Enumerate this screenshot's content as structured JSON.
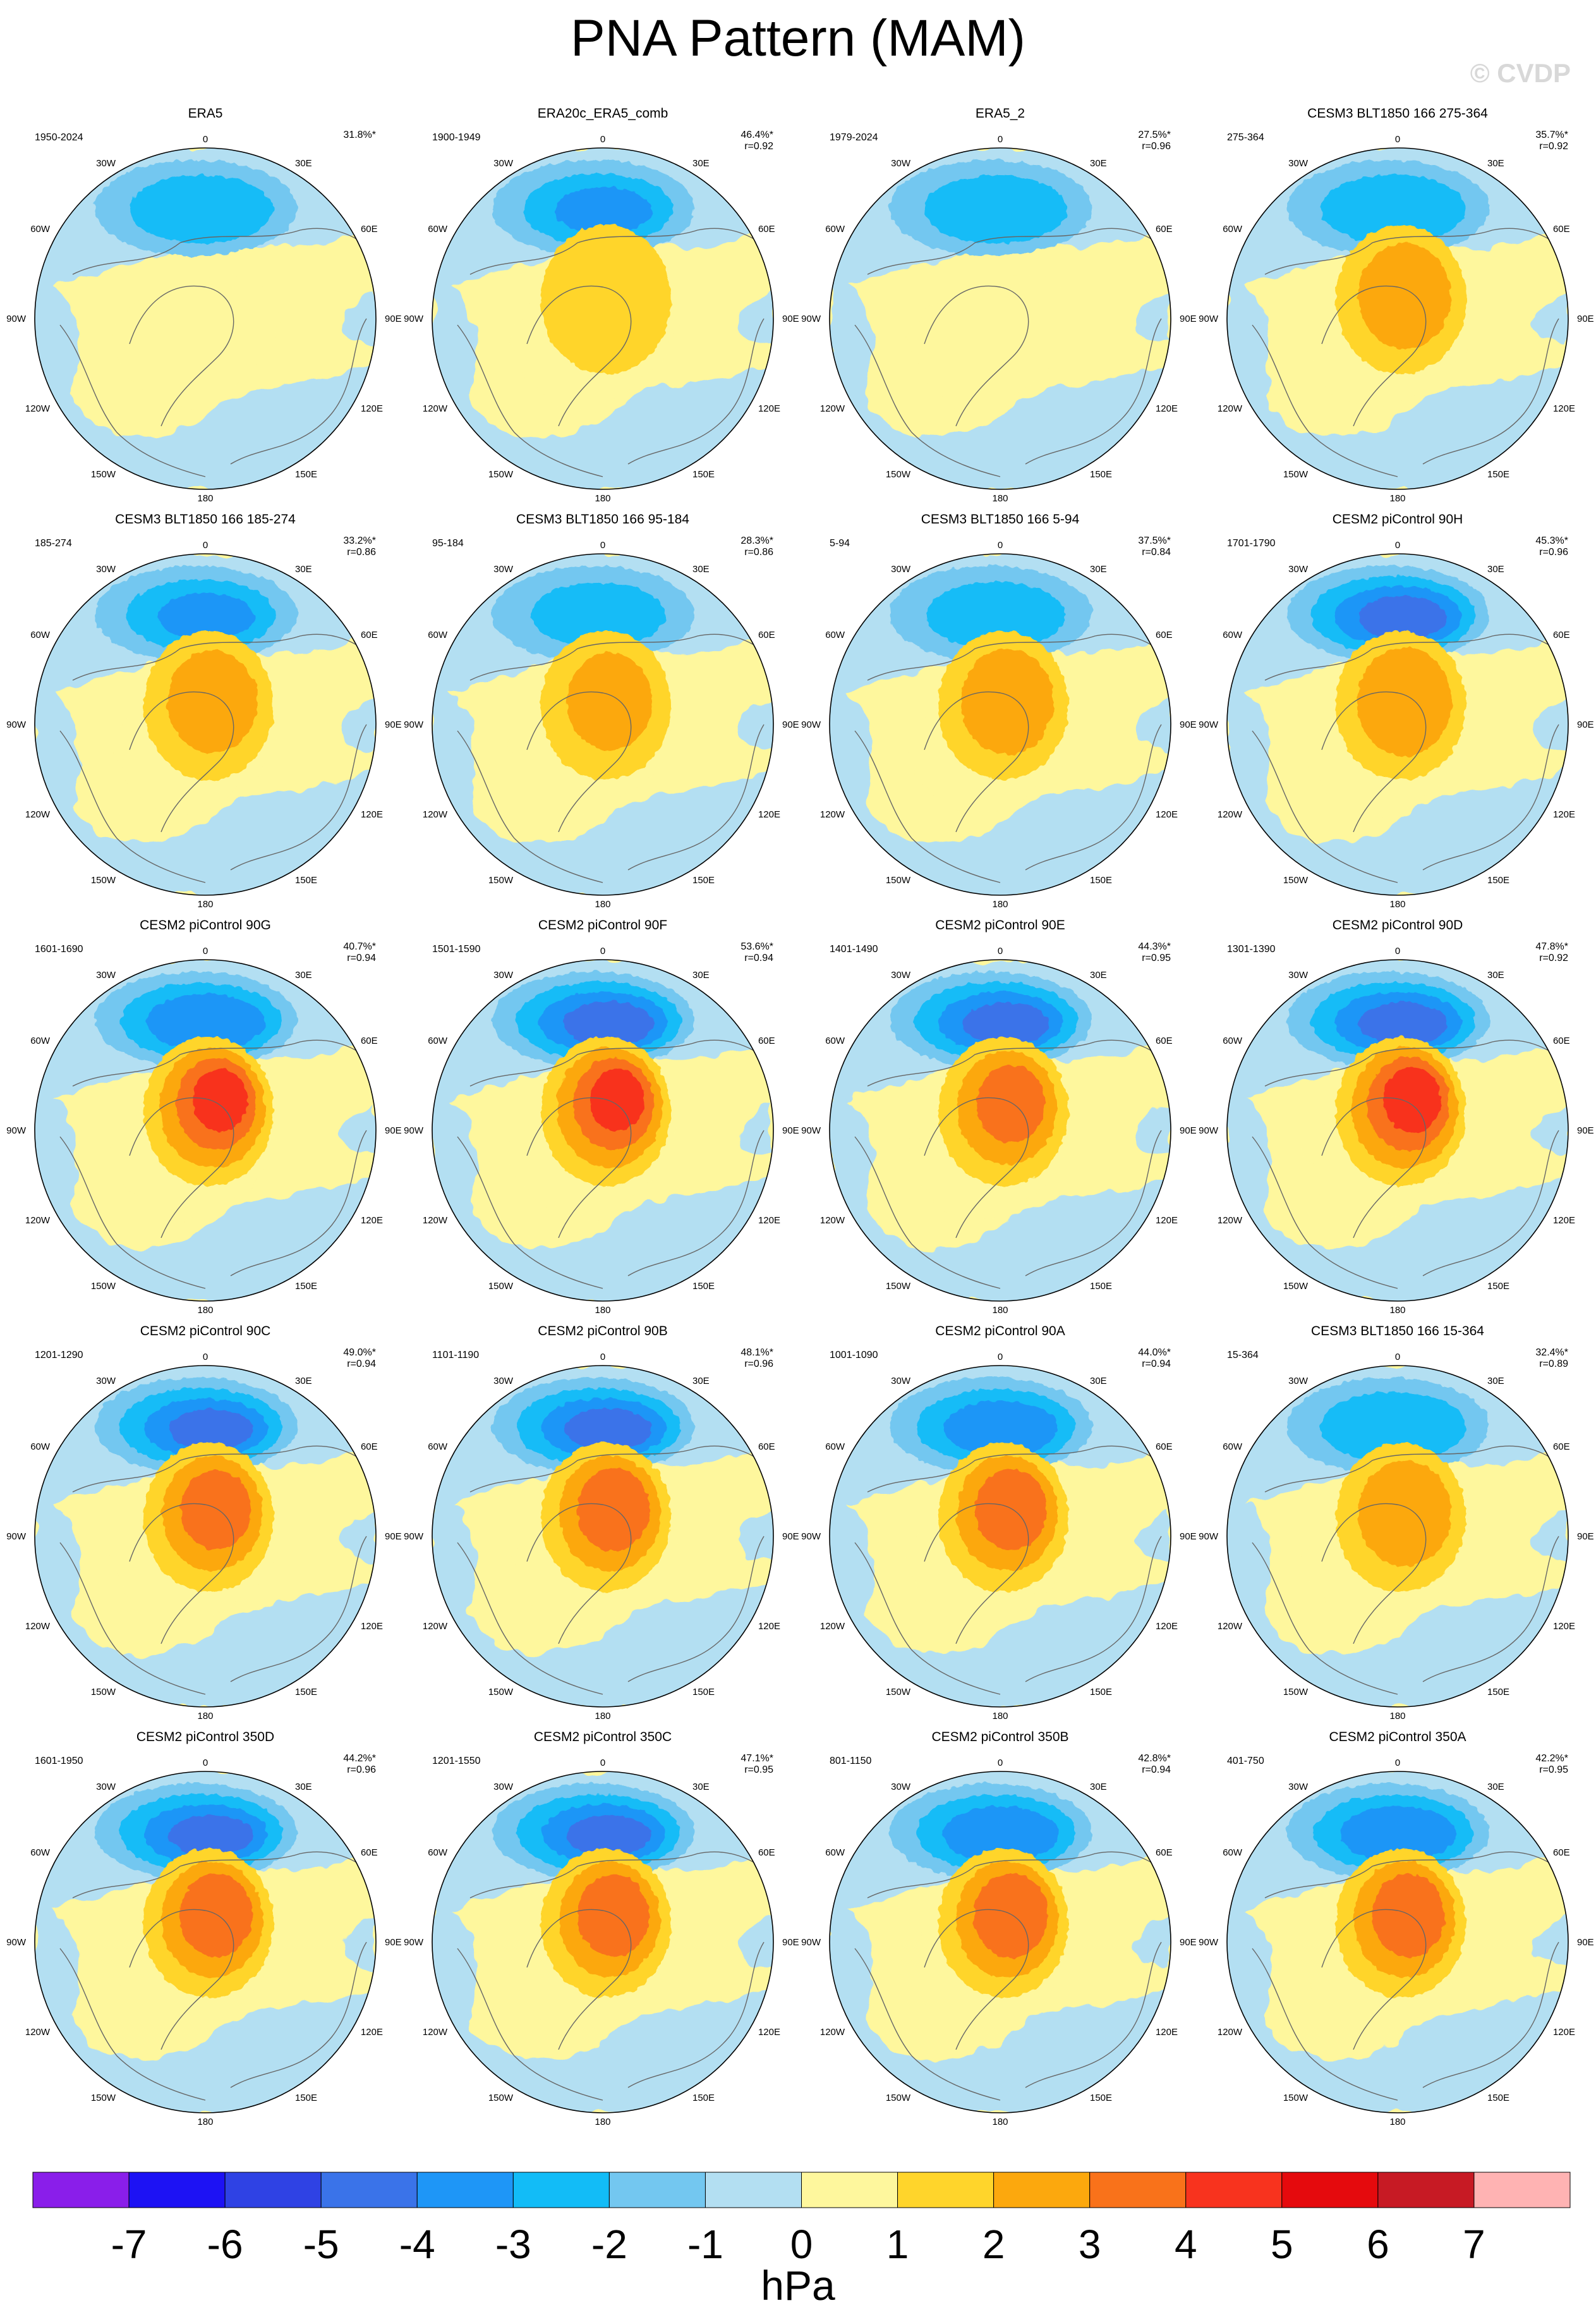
{
  "title": "PNA Pattern (MAM)",
  "watermark": "© CVDP",
  "units": "hPa",
  "lon_labels": [
    "180",
    "150E",
    "120E",
    "90E",
    "60E",
    "30E",
    "0",
    "30W",
    "60W",
    "90W",
    "120W",
    "150W"
  ],
  "colorbar": {
    "levels": [
      "-7",
      "-6",
      "-5",
      "-4",
      "-3",
      "-2",
      "-1",
      "0",
      "1",
      "2",
      "3",
      "4",
      "5",
      "6",
      "7"
    ],
    "colors": [
      "#8a1eea",
      "#1d12f4",
      "#2f42e4",
      "#3a73e9",
      "#1e96f7",
      "#12bcf7",
      "#73c7f0",
      "#b3dff2",
      "#fef79d",
      "#ffd52b",
      "#fca80d",
      "#f9721a",
      "#f8331e",
      "#e50a0d",
      "#c71a24",
      "#ffb3b3"
    ]
  },
  "panels": [
    {
      "title": "ERA5",
      "years": "1950-2024",
      "pct": "31.8%*",
      "r": "",
      "pos": 0.8,
      "neg": -2.6
    },
    {
      "title": "ERA20c_ERA5_comb",
      "years": "1900-1949",
      "pct": "46.4%*",
      "r": "r=0.92",
      "pos": 1.6,
      "neg": -3.0
    },
    {
      "title": "ERA5_2",
      "years": "1979-2024",
      "pct": "27.5%*",
      "r": "r=0.96",
      "pos": 0.7,
      "neg": -2.6
    },
    {
      "title": "CESM3 BLT1850 166 275-364",
      "years": "275-364",
      "pct": "35.7%*",
      "r": "r=0.92",
      "pos": 2.6,
      "neg": -2.7
    },
    {
      "title": "CESM3 BLT1850 166 185-274",
      "years": "185-274",
      "pct": "33.2%*",
      "r": "r=0.86",
      "pos": 2.4,
      "neg": -3.0
    },
    {
      "title": "CESM3 BLT1850 166 95-184",
      "years": "95-184",
      "pct": "28.3%*",
      "r": "r=0.86",
      "pos": 2.1,
      "neg": -2.2
    },
    {
      "title": "CESM3 BLT1850 166 5-94",
      "years": "5-94",
      "pct": "37.5%*",
      "r": "r=0.84",
      "pos": 2.6,
      "neg": -2.4
    },
    {
      "title": "CESM2 piControl 90H",
      "years": "1701-1790",
      "pct": "45.3%*",
      "r": "r=0.96",
      "pos": 2.8,
      "neg": -4.4
    },
    {
      "title": "CESM2 piControl 90G",
      "years": "1601-1690",
      "pct": "40.7%*",
      "r": "r=0.94",
      "pos": 4.2,
      "neg": -3.9
    },
    {
      "title": "CESM2 piControl 90F",
      "years": "1501-1590",
      "pct": "53.6%*",
      "r": "r=0.94",
      "pos": 4.2,
      "neg": -4.5
    },
    {
      "title": "CESM2 piControl 90E",
      "years": "1401-1490",
      "pct": "44.3%*",
      "r": "r=0.95",
      "pos": 3.3,
      "neg": -4.3
    },
    {
      "title": "CESM2 piControl 90D",
      "years": "1301-1390",
      "pct": "47.8%*",
      "r": "r=0.92",
      "pos": 4.4,
      "neg": -4.4
    },
    {
      "title": "CESM2 piControl 90C",
      "years": "1201-1290",
      "pct": "49.0%*",
      "r": "r=0.94",
      "pos": 3.4,
      "neg": -4.2
    },
    {
      "title": "CESM2 piControl 90B",
      "years": "1101-1190",
      "pct": "48.1%*",
      "r": "r=0.96",
      "pos": 3.6,
      "neg": -4.3
    },
    {
      "title": "CESM2 piControl 90A",
      "years": "1001-1090",
      "pct": "44.0%*",
      "r": "r=0.94",
      "pos": 3.5,
      "neg": -3.7
    },
    {
      "title": "CESM3 BLT1850 166 15-364",
      "years": "15-364",
      "pct": "32.4%*",
      "r": "r=0.89",
      "pos": 2.6,
      "neg": -2.8
    },
    {
      "title": "CESM2 piControl 350D",
      "years": "1601-1950",
      "pct": "44.2%*",
      "r": "r=0.96",
      "pos": 3.6,
      "neg": -4.2
    },
    {
      "title": "CESM2 piControl 350C",
      "years": "1201-1550",
      "pct": "47.1%*",
      "r": "r=0.95",
      "pos": 3.5,
      "neg": -4.2
    },
    {
      "title": "CESM2 piControl 350B",
      "years": "801-1150",
      "pct": "42.8%*",
      "r": "r=0.94",
      "pos": 3.7,
      "neg": -3.8
    },
    {
      "title": "CESM2 piControl 350A",
      "years": "401-750",
      "pct": "42.2%*",
      "r": "r=0.95",
      "pos": 3.6,
      "neg": -3.8
    }
  ]
}
